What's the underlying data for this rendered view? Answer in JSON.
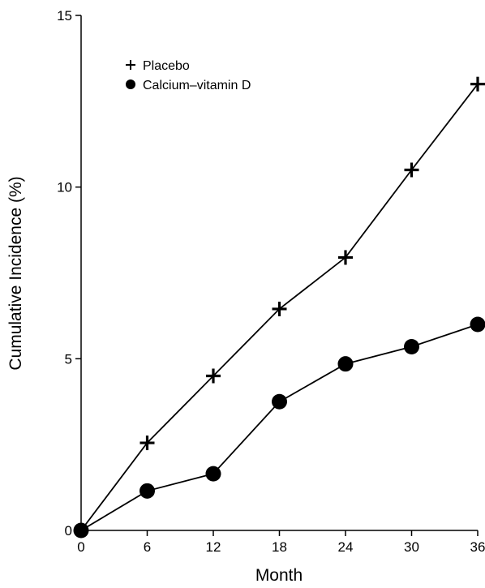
{
  "chart_data": {
    "type": "line",
    "title": "",
    "xlabel": "Month",
    "ylabel": "Cumulative Incidence (%)",
    "xlim": [
      0,
      36
    ],
    "ylim": [
      0,
      15
    ],
    "x_ticks": [
      0,
      6,
      12,
      18,
      24,
      30,
      36
    ],
    "y_ticks": [
      0,
      5,
      10,
      15
    ],
    "grid": false,
    "legend_position": "top-left",
    "x": [
      0,
      6,
      12,
      18,
      24,
      30,
      36
    ],
    "series": [
      {
        "name": "Placebo",
        "marker": "plus",
        "color": "#000000",
        "values": [
          0,
          2.55,
          4.5,
          6.45,
          7.95,
          10.5,
          13.0
        ]
      },
      {
        "name": "Calcium–vitamin D",
        "marker": "circle",
        "color": "#000000",
        "values": [
          0,
          1.15,
          1.65,
          3.75,
          4.85,
          5.35,
          6.0
        ]
      }
    ]
  }
}
